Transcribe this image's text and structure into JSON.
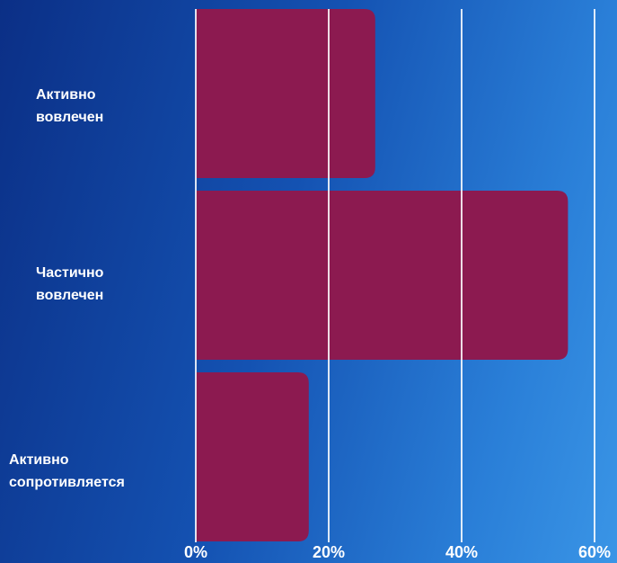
{
  "chart_data": {
    "type": "bar",
    "orientation": "horizontal",
    "categories": [
      [
        "Активно",
        "вовлечен"
      ],
      [
        "Частично",
        "вовлечен"
      ],
      [
        "Активно",
        "сопротивляется"
      ]
    ],
    "values": [
      27,
      56,
      17
    ],
    "unit": "%",
    "xlim": [
      0,
      60
    ],
    "xticks": [
      "0%",
      "20%",
      "40%",
      "60%"
    ],
    "grid": true,
    "colors": {
      "bar": "#8c1a50",
      "gridline": "#ffffff",
      "text": "#ffffff"
    }
  }
}
